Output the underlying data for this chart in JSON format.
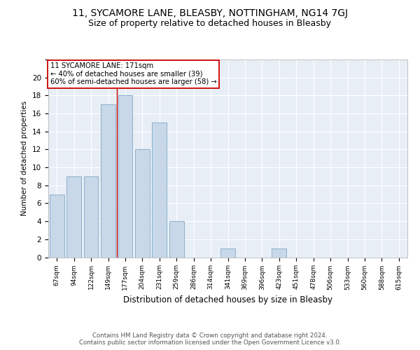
{
  "title1": "11, SYCAMORE LANE, BLEASBY, NOTTINGHAM, NG14 7GJ",
  "title2": "Size of property relative to detached houses in Bleasby",
  "xlabel": "Distribution of detached houses by size in Bleasby",
  "ylabel": "Number of detached properties",
  "categories": [
    "67sqm",
    "94sqm",
    "122sqm",
    "149sqm",
    "177sqm",
    "204sqm",
    "231sqm",
    "259sqm",
    "286sqm",
    "314sqm",
    "341sqm",
    "369sqm",
    "396sqm",
    "423sqm",
    "451sqm",
    "478sqm",
    "506sqm",
    "533sqm",
    "560sqm",
    "588sqm",
    "615sqm"
  ],
  "values": [
    7,
    9,
    9,
    17,
    18,
    12,
    15,
    4,
    0,
    0,
    1,
    0,
    0,
    1,
    0,
    0,
    0,
    0,
    0,
    0,
    0
  ],
  "bar_color": "#c8d8e8",
  "bar_edge_color": "#7fa8c8",
  "annotation_line1": "11 SYCAMORE LANE: 171sqm",
  "annotation_line2": "← 40% of detached houses are smaller (39)",
  "annotation_line3": "60% of semi-detached houses are larger (58) →",
  "annotation_box_color": "#ffffff",
  "annotation_box_edge": "#cc0000",
  "ylim": [
    0,
    22
  ],
  "yticks": [
    0,
    2,
    4,
    6,
    8,
    10,
    12,
    14,
    16,
    18,
    20,
    22
  ],
  "footer": "Contains HM Land Registry data © Crown copyright and database right 2024.\nContains public sector information licensed under the Open Government Licence v3.0.",
  "bg_color": "#e8eef5",
  "grid_color": "#ffffff",
  "title1_fontsize": 10,
  "title2_fontsize": 9
}
